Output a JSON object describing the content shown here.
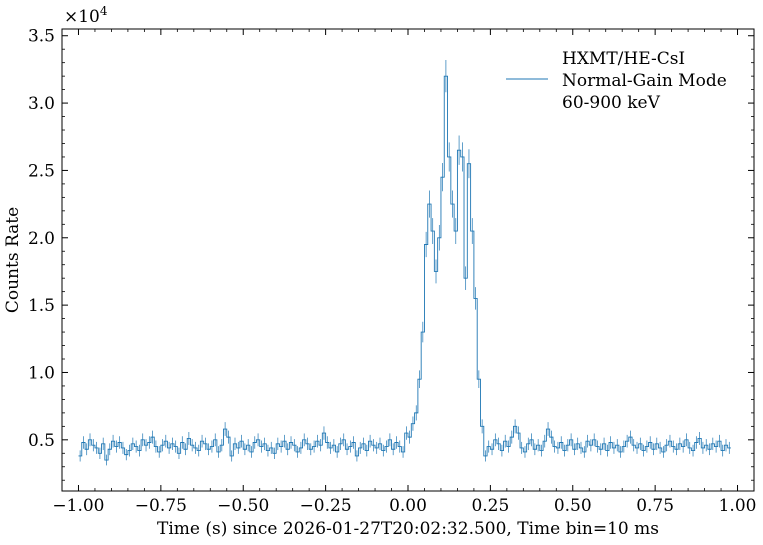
{
  "chart_data": {
    "type": "line",
    "title": "",
    "xlabel": "Time (s) since 2026-01-27T20:02:32.500, Time bin=10 ms",
    "ylabel": "Counts Rate",
    "y_multiplier_label": "×10",
    "y_multiplier_exponent": "4",
    "xlim": [
      -1.05,
      1.05
    ],
    "ylim": [
      0.12,
      3.55
    ],
    "x_ticks": [
      -1.0,
      -0.75,
      -0.5,
      -0.25,
      0.0,
      0.25,
      0.5,
      0.75,
      1.0
    ],
    "x_tick_labels": [
      "−1.00",
      "−0.75",
      "−0.50",
      "−0.25",
      "0.00",
      "0.25",
      "0.50",
      "0.75",
      "1.00"
    ],
    "y_ticks": [
      0.5,
      1.0,
      1.5,
      2.0,
      2.5,
      3.0,
      3.5
    ],
    "y_tick_labels": [
      "0.5",
      "1.0",
      "1.5",
      "2.0",
      "2.5",
      "3.0",
      "3.5"
    ],
    "legend": {
      "position": "top-right",
      "lines": [
        "HXMT/HE-CsI",
        "Normal-Gain Mode",
        "60-900 keV"
      ]
    },
    "series": [
      {
        "name": "HXMT/HE-CsI Normal-Gain Mode 60-900 keV",
        "color": "#1f77b4",
        "style": "step with error bars",
        "bin_width": 0.01,
        "x_start": -1.0,
        "values": [
          0.38,
          0.48,
          0.43,
          0.5,
          0.46,
          0.44,
          0.4,
          0.47,
          0.35,
          0.43,
          0.49,
          0.45,
          0.48,
          0.44,
          0.39,
          0.42,
          0.47,
          0.45,
          0.42,
          0.5,
          0.46,
          0.48,
          0.52,
          0.45,
          0.41,
          0.46,
          0.49,
          0.44,
          0.47,
          0.45,
          0.4,
          0.48,
          0.43,
          0.51,
          0.46,
          0.44,
          0.42,
          0.49,
          0.47,
          0.43,
          0.45,
          0.5,
          0.41,
          0.46,
          0.58,
          0.52,
          0.38,
          0.47,
          0.44,
          0.49,
          0.43,
          0.46,
          0.41,
          0.48,
          0.5,
          0.45,
          0.47,
          0.42,
          0.44,
          0.4,
          0.47,
          0.45,
          0.49,
          0.43,
          0.48,
          0.46,
          0.41,
          0.44,
          0.5,
          0.47,
          0.43,
          0.45,
          0.49,
          0.46,
          0.55,
          0.48,
          0.44,
          0.46,
          0.41,
          0.47,
          0.5,
          0.43,
          0.45,
          0.48,
          0.38,
          0.44,
          0.47,
          0.42,
          0.49,
          0.46,
          0.44,
          0.47,
          0.42,
          0.45,
          0.5,
          0.43,
          0.48,
          0.45,
          0.41,
          0.55,
          0.52,
          0.62,
          0.7,
          0.95,
          1.3,
          1.95,
          2.25,
          2.05,
          1.75,
          2.0,
          2.45,
          3.2,
          2.6,
          2.25,
          2.05,
          2.65,
          2.6,
          1.7,
          2.55,
          2.05,
          1.55,
          0.95,
          0.6,
          0.38,
          0.45,
          0.43,
          0.5,
          0.47,
          0.42,
          0.49,
          0.45,
          0.52,
          0.6,
          0.55,
          0.44,
          0.41,
          0.47,
          0.5,
          0.43,
          0.46,
          0.42,
          0.49,
          0.58,
          0.52,
          0.45,
          0.44,
          0.48,
          0.42,
          0.46,
          0.5,
          0.43,
          0.47,
          0.44,
          0.41,
          0.49,
          0.46,
          0.5,
          0.45,
          0.43,
          0.47,
          0.42,
          0.48,
          0.44,
          0.46,
          0.41,
          0.45,
          0.49,
          0.52,
          0.46,
          0.44,
          0.47,
          0.42,
          0.45,
          0.48,
          0.43,
          0.47,
          0.44,
          0.41,
          0.46,
          0.49,
          0.45,
          0.43,
          0.47,
          0.45,
          0.5,
          0.44,
          0.42,
          0.48,
          0.51,
          0.44,
          0.46,
          0.43,
          0.47,
          0.45,
          0.49,
          0.42,
          0.46,
          0.44
        ]
      }
    ]
  }
}
